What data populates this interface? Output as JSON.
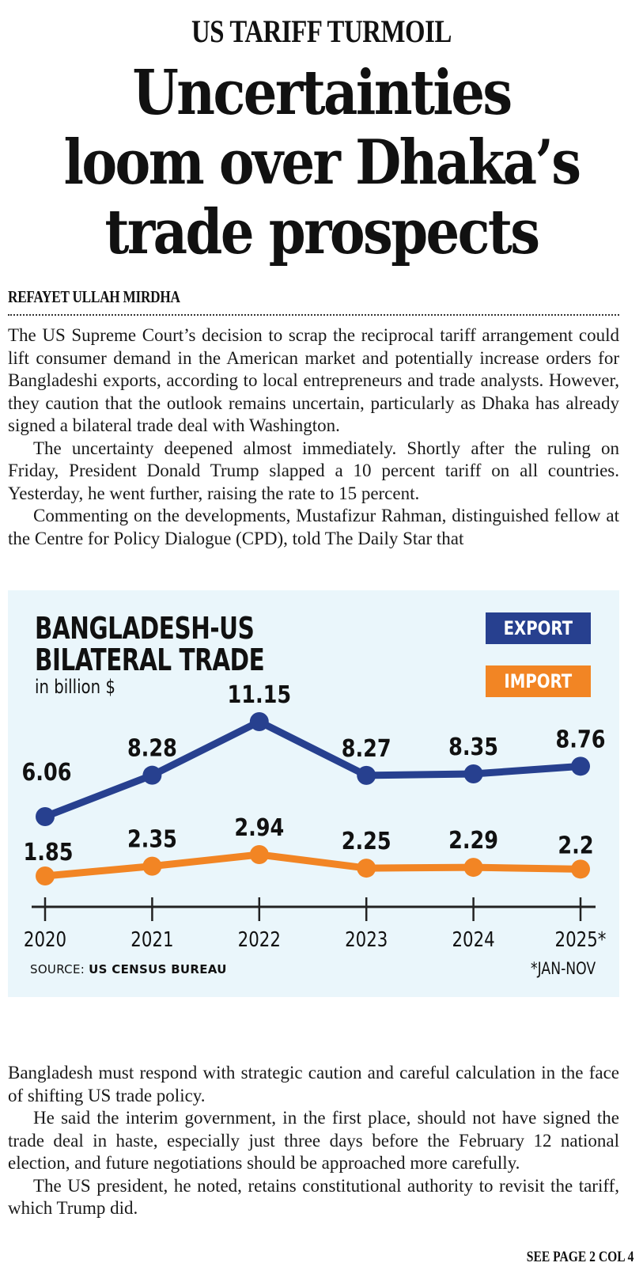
{
  "article": {
    "kicker": "US TARIFF TURMOIL",
    "headline_lines": [
      "Uncertainties",
      "loom over Dhaka’s",
      "trade prospects"
    ],
    "byline": "REFAYET ULLAH MIRDHA",
    "paragraphs_top": [
      "The US Supreme Court’s decision to scrap the reciprocal tariff arrangement could lift consumer demand in the American market and potentially increase orders for Bangladeshi exports, according to local entrepreneurs and trade analysts. However, they caution that the outlook remains uncertain, particularly as Dhaka has already signed a bilateral trade deal with Washington.",
      "The uncertainty deepened almost immediately. Shortly after the ruling on Friday, President Donald Trump slapped a 10 percent tariff on all countries. Yesterday, he went further, raising the rate to 15 percent.",
      "Commenting on the developments, Mustafizur Rahman, distinguished fellow at the Centre for Policy Dialogue (CPD), told The Daily Star that"
    ],
    "paragraphs_bottom": [
      "Bangladesh must respond with strategic caution and careful calculation in the face of shifting US trade policy.",
      "He said the interim government, in the first place, should not have signed the trade deal in haste, especially just three days before the February 12 national election, and future negotiations should be approached more carefully.",
      "The US president, he noted, retains constitutional authority to revisit the tariff, which Trump did."
    ],
    "jump_line": "SEE PAGE 2 COL 4"
  },
  "chart_data": {
    "type": "line",
    "title_lines": [
      "BANGLADESH-US",
      "BILATERAL TRADE"
    ],
    "subtitle": "in billion $",
    "categories": [
      "2020",
      "2021",
      "2022",
      "2023",
      "2024",
      "2025*"
    ],
    "series": [
      {
        "name": "EXPORT",
        "color": "#27408f",
        "values": [
          6.06,
          8.28,
          11.15,
          8.27,
          8.35,
          8.76
        ],
        "labels": [
          "6.06",
          "8.28",
          "11.15",
          "8.27",
          "8.35",
          "8.76"
        ]
      },
      {
        "name": "IMPORT",
        "color": "#f28524",
        "values": [
          1.85,
          2.35,
          2.94,
          2.25,
          2.29,
          2.2
        ],
        "labels": [
          "1.85",
          "2.35",
          "2.94",
          "2.25",
          "2.29",
          "2.2"
        ]
      }
    ],
    "xlabel": "",
    "ylabel": "",
    "grid": false,
    "legend_position": "top-right",
    "source_label": "SOURCE:",
    "source_value": "US CENSUS BUREAU",
    "footnote": "*JAN-NOV",
    "background": "#eaf6fb"
  }
}
